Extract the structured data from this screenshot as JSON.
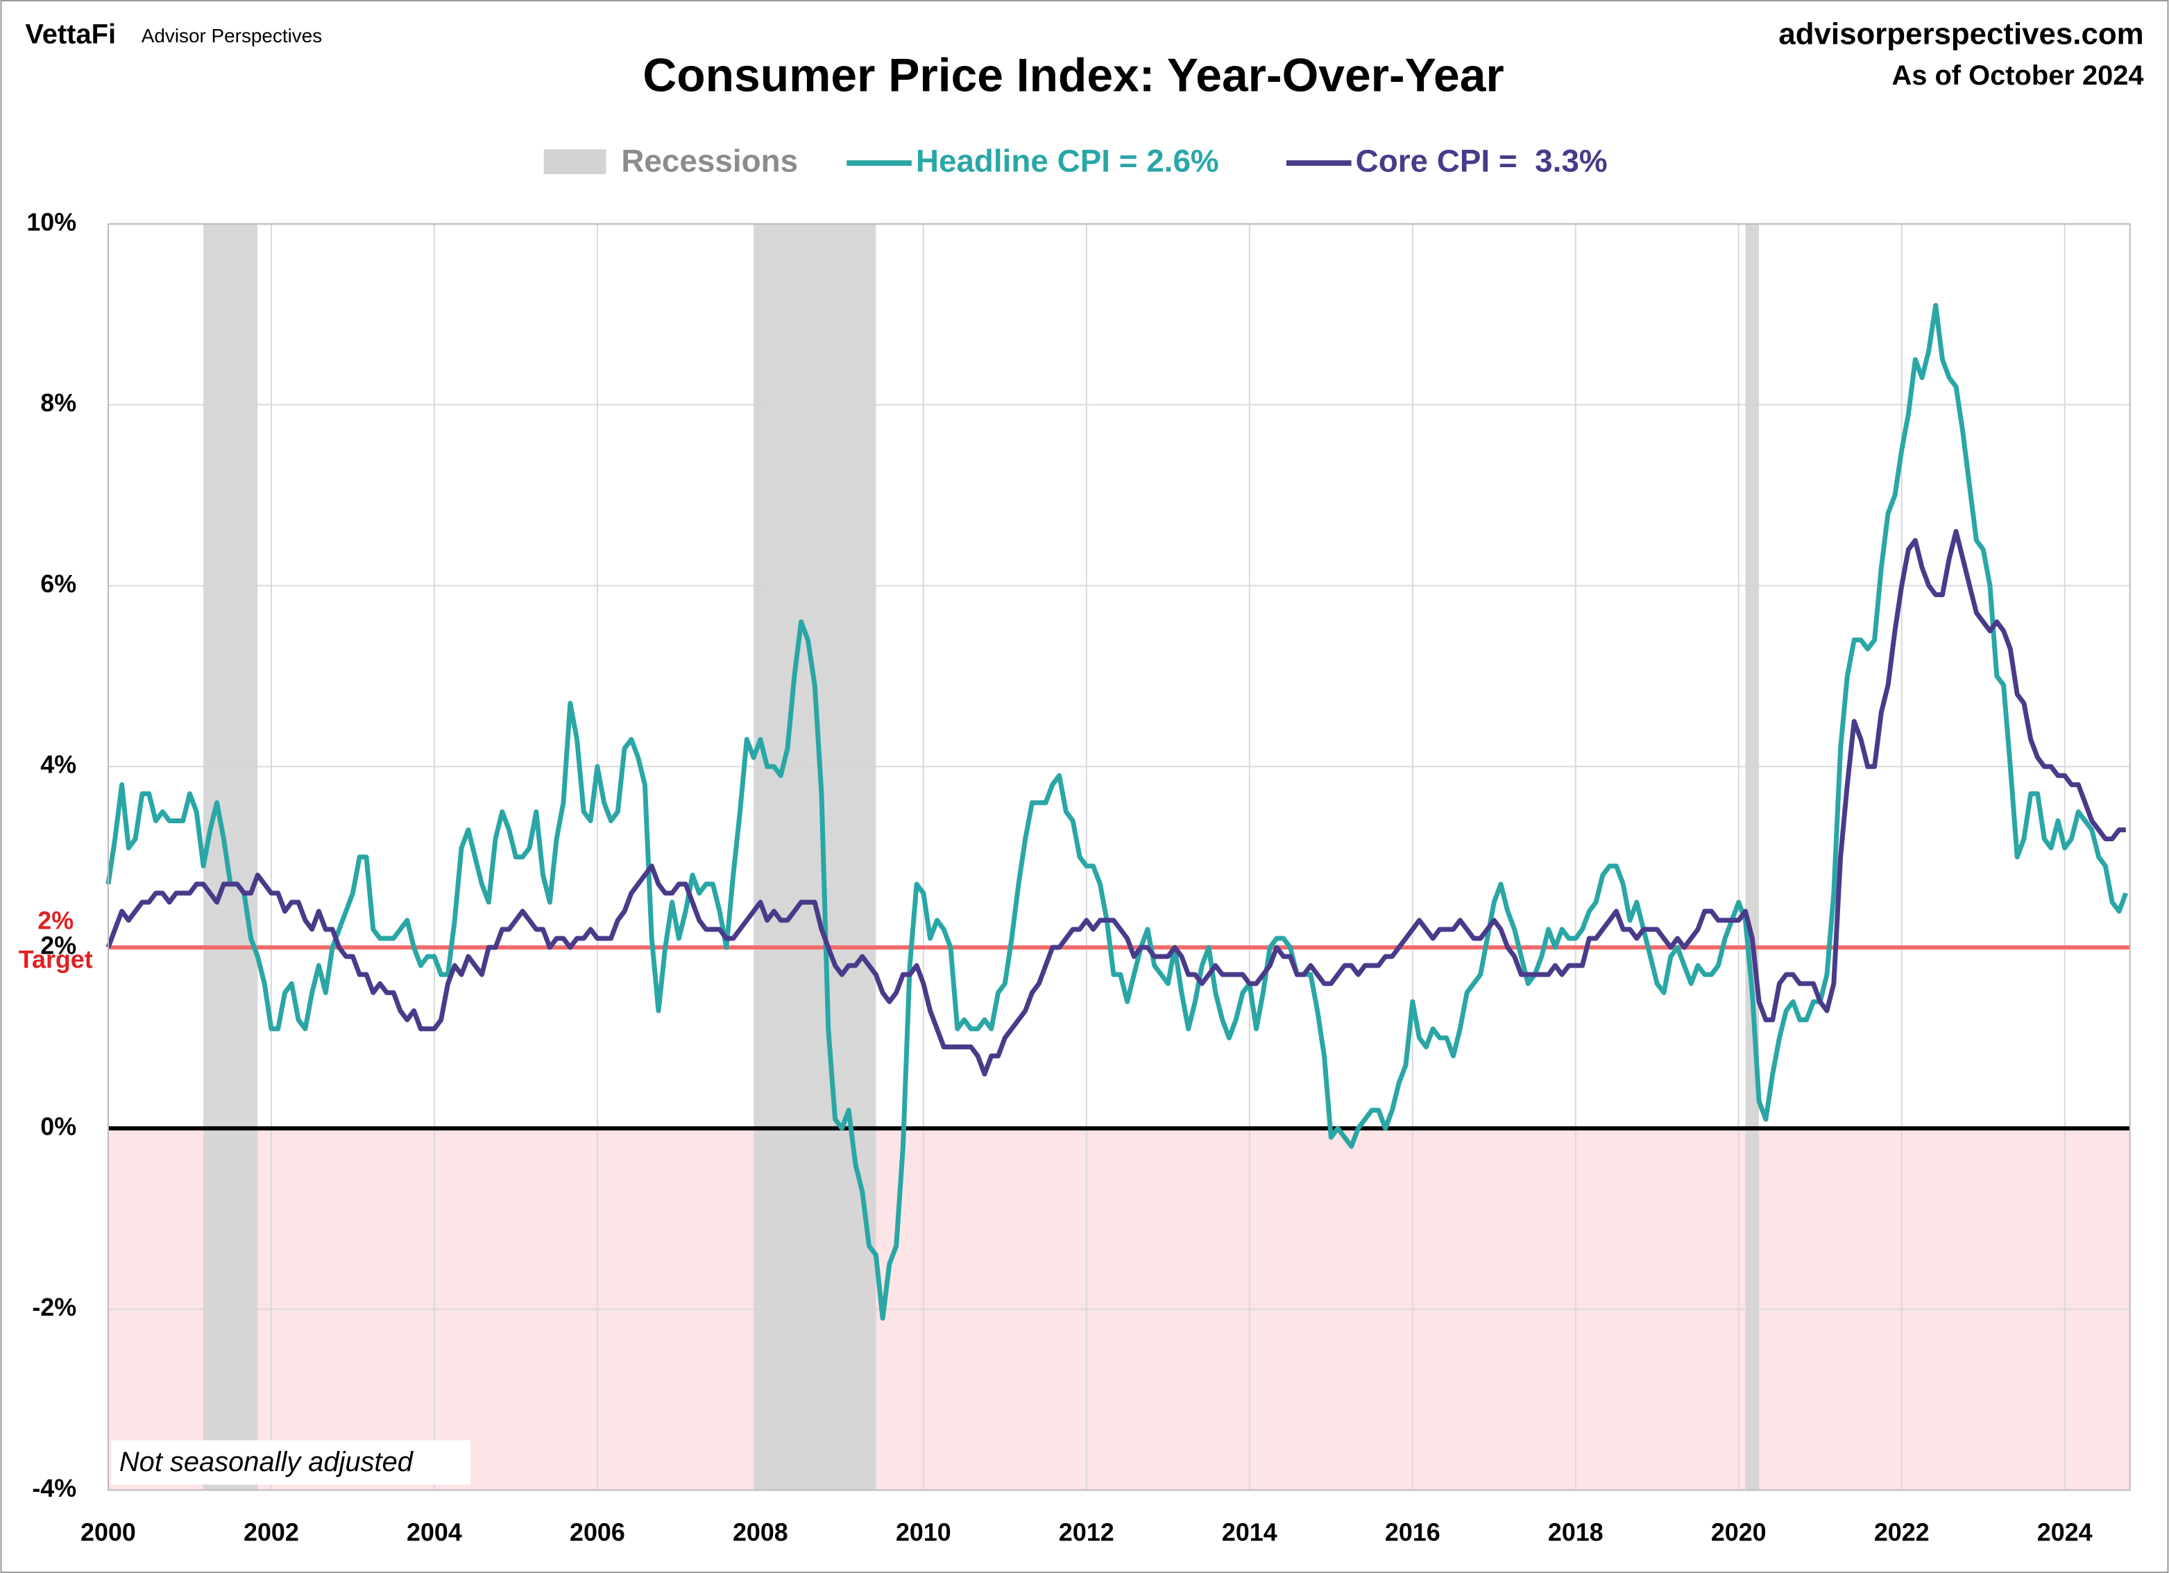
{
  "chart_data": {
    "type": "line",
    "title": "Consumer Price Index: Year-Over-Year",
    "brand": "VettaFi",
    "brand_sub": "Advisor Perspectives",
    "source": "advisorperspectives.com",
    "as_of": "As of October 2024",
    "note": "Not seasonally adjusted",
    "recession_label": "Recessions",
    "recession_color": "#d3d3d3",
    "recessions": [
      {
        "start": 2001.167,
        "end": 2001.833
      },
      {
        "start": 2007.917,
        "end": 2009.417
      },
      {
        "start": 2020.083,
        "end": 2020.25
      }
    ],
    "target": {
      "value": 2,
      "label": "2%",
      "name": "Target",
      "color": "#f26b6b"
    },
    "negative_fill": "#fde4e6",
    "grid": true,
    "xlim": [
      2000,
      2024.8
    ],
    "xticks": [
      2000,
      2002,
      2004,
      2006,
      2008,
      2010,
      2012,
      2014,
      2016,
      2018,
      2020,
      2022,
      2024
    ],
    "ylim": [
      -4,
      10
    ],
    "yticks": [
      {
        "value": -4,
        "label": "-4%"
      },
      {
        "value": -2,
        "label": "-2%"
      },
      {
        "value": 0,
        "label": "0%"
      },
      {
        "value": 2,
        "label": "2%"
      },
      {
        "value": 4,
        "label": "4%"
      },
      {
        "value": 6,
        "label": "6%"
      },
      {
        "value": 8,
        "label": "8%"
      },
      {
        "value": 10,
        "label": "10%"
      }
    ],
    "x": [
      2000,
      2000.083,
      2000.167,
      2000.25,
      2000.333,
      2000.417,
      2000.5,
      2000.583,
      2000.667,
      2000.75,
      2000.833,
      2000.917,
      2001,
      2001.083,
      2001.167,
      2001.25,
      2001.333,
      2001.417,
      2001.5,
      2001.583,
      2001.667,
      2001.75,
      2001.833,
      2001.917,
      2002,
      2002.083,
      2002.167,
      2002.25,
      2002.333,
      2002.417,
      2002.5,
      2002.583,
      2002.667,
      2002.75,
      2002.833,
      2002.917,
      2003,
      2003.083,
      2003.167,
      2003.25,
      2003.333,
      2003.417,
      2003.5,
      2003.583,
      2003.667,
      2003.75,
      2003.833,
      2003.917,
      2004,
      2004.083,
      2004.167,
      2004.25,
      2004.333,
      2004.417,
      2004.5,
      2004.583,
      2004.667,
      2004.75,
      2004.833,
      2004.917,
      2005,
      2005.083,
      2005.167,
      2005.25,
      2005.333,
      2005.417,
      2005.5,
      2005.583,
      2005.667,
      2005.75,
      2005.833,
      2005.917,
      2006,
      2006.083,
      2006.167,
      2006.25,
      2006.333,
      2006.417,
      2006.5,
      2006.583,
      2006.667,
      2006.75,
      2006.833,
      2006.917,
      2007,
      2007.083,
      2007.167,
      2007.25,
      2007.333,
      2007.417,
      2007.5,
      2007.583,
      2007.667,
      2007.75,
      2007.833,
      2007.917,
      2008,
      2008.083,
      2008.167,
      2008.25,
      2008.333,
      2008.417,
      2008.5,
      2008.583,
      2008.667,
      2008.75,
      2008.833,
      2008.917,
      2009,
      2009.083,
      2009.167,
      2009.25,
      2009.333,
      2009.417,
      2009.5,
      2009.583,
      2009.667,
      2009.75,
      2009.833,
      2009.917,
      2010,
      2010.083,
      2010.167,
      2010.25,
      2010.333,
      2010.417,
      2010.5,
      2010.583,
      2010.667,
      2010.75,
      2010.833,
      2010.917,
      2011,
      2011.083,
      2011.167,
      2011.25,
      2011.333,
      2011.417,
      2011.5,
      2011.583,
      2011.667,
      2011.75,
      2011.833,
      2011.917,
      2012,
      2012.083,
      2012.167,
      2012.25,
      2012.333,
      2012.417,
      2012.5,
      2012.583,
      2012.667,
      2012.75,
      2012.833,
      2012.917,
      2013,
      2013.083,
      2013.167,
      2013.25,
      2013.333,
      2013.417,
      2013.5,
      2013.583,
      2013.667,
      2013.75,
      2013.833,
      2013.917,
      2014,
      2014.083,
      2014.167,
      2014.25,
      2014.333,
      2014.417,
      2014.5,
      2014.583,
      2014.667,
      2014.75,
      2014.833,
      2014.917,
      2015,
      2015.083,
      2015.167,
      2015.25,
      2015.333,
      2015.417,
      2015.5,
      2015.583,
      2015.667,
      2015.75,
      2015.833,
      2015.917,
      2016,
      2016.083,
      2016.167,
      2016.25,
      2016.333,
      2016.417,
      2016.5,
      2016.583,
      2016.667,
      2016.75,
      2016.833,
      2016.917,
      2017,
      2017.083,
      2017.167,
      2017.25,
      2017.333,
      2017.417,
      2017.5,
      2017.583,
      2017.667,
      2017.75,
      2017.833,
      2017.917,
      2018,
      2018.083,
      2018.167,
      2018.25,
      2018.333,
      2018.417,
      2018.5,
      2018.583,
      2018.667,
      2018.75,
      2018.833,
      2018.917,
      2019,
      2019.083,
      2019.167,
      2019.25,
      2019.333,
      2019.417,
      2019.5,
      2019.583,
      2019.667,
      2019.75,
      2019.833,
      2019.917,
      2020,
      2020.083,
      2020.167,
      2020.25,
      2020.333,
      2020.417,
      2020.5,
      2020.583,
      2020.667,
      2020.75,
      2020.833,
      2020.917,
      2021,
      2021.083,
      2021.167,
      2021.25,
      2021.333,
      2021.417,
      2021.5,
      2021.583,
      2021.667,
      2021.75,
      2021.833,
      2021.917,
      2022,
      2022.083,
      2022.167,
      2022.25,
      2022.333,
      2022.417,
      2022.5,
      2022.583,
      2022.667,
      2022.75,
      2022.833,
      2022.917,
      2023,
      2023.083,
      2023.167,
      2023.25,
      2023.333,
      2023.417,
      2023.5,
      2023.583,
      2023.667,
      2023.75,
      2023.833,
      2023.917,
      2024,
      2024.083,
      2024.167,
      2024.25,
      2024.333,
      2024.417,
      2024.5,
      2024.583,
      2024.667,
      2024.75
    ],
    "series": [
      {
        "name": "Headline CPI = 2.6%",
        "color": "#2aa6a6",
        "values": [
          2.7,
          3.2,
          3.8,
          3.1,
          3.2,
          3.7,
          3.7,
          3.4,
          3.5,
          3.4,
          3.4,
          3.4,
          3.7,
          3.5,
          2.9,
          3.3,
          3.6,
          3.2,
          2.7,
          2.7,
          2.6,
          2.1,
          1.9,
          1.6,
          1.1,
          1.1,
          1.5,
          1.6,
          1.2,
          1.1,
          1.5,
          1.8,
          1.5,
          2.0,
          2.2,
          2.4,
          2.6,
          3.0,
          3.0,
          2.2,
          2.1,
          2.1,
          2.1,
          2.2,
          2.3,
          2.0,
          1.8,
          1.9,
          1.9,
          1.7,
          1.7,
          2.3,
          3.1,
          3.3,
          3.0,
          2.7,
          2.5,
          3.2,
          3.5,
          3.3,
          3.0,
          3.0,
          3.1,
          3.5,
          2.8,
          2.5,
          3.2,
          3.6,
          4.7,
          4.3,
          3.5,
          3.4,
          4.0,
          3.6,
          3.4,
          3.5,
          4.2,
          4.3,
          4.1,
          3.8,
          2.1,
          1.3,
          2.0,
          2.5,
          2.1,
          2.4,
          2.8,
          2.6,
          2.7,
          2.7,
          2.4,
          2.0,
          2.8,
          3.5,
          4.3,
          4.1,
          4.3,
          4.0,
          4.0,
          3.9,
          4.2,
          5.0,
          5.6,
          5.4,
          4.9,
          3.7,
          1.1,
          0.1,
          0.0,
          0.2,
          -0.4,
          -0.7,
          -1.3,
          -1.4,
          -2.1,
          -1.5,
          -1.3,
          -0.2,
          1.8,
          2.7,
          2.6,
          2.1,
          2.3,
          2.2,
          2.0,
          1.1,
          1.2,
          1.1,
          1.1,
          1.2,
          1.1,
          1.5,
          1.6,
          2.1,
          2.7,
          3.2,
          3.6,
          3.6,
          3.6,
          3.8,
          3.9,
          3.5,
          3.4,
          3.0,
          2.9,
          2.9,
          2.7,
          2.3,
          1.7,
          1.7,
          1.4,
          1.7,
          2.0,
          2.2,
          1.8,
          1.7,
          1.6,
          2.0,
          1.5,
          1.1,
          1.4,
          1.8,
          2.0,
          1.5,
          1.2,
          1.0,
          1.2,
          1.5,
          1.6,
          1.1,
          1.5,
          2.0,
          2.1,
          2.1,
          2.0,
          1.7,
          1.7,
          1.7,
          1.3,
          0.8,
          -0.1,
          0.0,
          -0.1,
          -0.2,
          0.0,
          0.1,
          0.2,
          0.2,
          0.0,
          0.2,
          0.5,
          0.7,
          1.4,
          1.0,
          0.9,
          1.1,
          1.0,
          1.0,
          0.8,
          1.1,
          1.5,
          1.6,
          1.7,
          2.1,
          2.5,
          2.7,
          2.4,
          2.2,
          1.9,
          1.6,
          1.7,
          1.9,
          2.2,
          2.0,
          2.2,
          2.1,
          2.1,
          2.2,
          2.4,
          2.5,
          2.8,
          2.9,
          2.9,
          2.7,
          2.3,
          2.5,
          2.2,
          1.9,
          1.6,
          1.5,
          1.9,
          2.0,
          1.8,
          1.6,
          1.8,
          1.7,
          1.7,
          1.8,
          2.1,
          2.3,
          2.5,
          2.3,
          1.5,
          0.3,
          0.1,
          0.6,
          1.0,
          1.3,
          1.4,
          1.2,
          1.2,
          1.4,
          1.4,
          1.7,
          2.6,
          4.2,
          5.0,
          5.4,
          5.4,
          5.3,
          5.4,
          6.2,
          6.8,
          7.0,
          7.5,
          7.9,
          8.5,
          8.3,
          8.6,
          9.1,
          8.5,
          8.3,
          8.2,
          7.7,
          7.1,
          6.5,
          6.4,
          6.0,
          5.0,
          4.9,
          4.0,
          3.0,
          3.2,
          3.7,
          3.7,
          3.2,
          3.1,
          3.4,
          3.1,
          3.2,
          3.5,
          3.4,
          3.3,
          3.0,
          2.9,
          2.5,
          2.4,
          2.6
        ]
      },
      {
        "name": "Core CPI =  3.3%",
        "color": "#4a3a8a",
        "values": [
          2.0,
          2.2,
          2.4,
          2.3,
          2.4,
          2.5,
          2.5,
          2.6,
          2.6,
          2.5,
          2.6,
          2.6,
          2.6,
          2.7,
          2.7,
          2.6,
          2.5,
          2.7,
          2.7,
          2.7,
          2.6,
          2.6,
          2.8,
          2.7,
          2.6,
          2.6,
          2.4,
          2.5,
          2.5,
          2.3,
          2.2,
          2.4,
          2.2,
          2.2,
          2.0,
          1.9,
          1.9,
          1.7,
          1.7,
          1.5,
          1.6,
          1.5,
          1.5,
          1.3,
          1.2,
          1.3,
          1.1,
          1.1,
          1.1,
          1.2,
          1.6,
          1.8,
          1.7,
          1.9,
          1.8,
          1.7,
          2.0,
          2.0,
          2.2,
          2.2,
          2.3,
          2.4,
          2.3,
          2.2,
          2.2,
          2.0,
          2.1,
          2.1,
          2.0,
          2.1,
          2.1,
          2.2,
          2.1,
          2.1,
          2.1,
          2.3,
          2.4,
          2.6,
          2.7,
          2.8,
          2.9,
          2.7,
          2.6,
          2.6,
          2.7,
          2.7,
          2.5,
          2.3,
          2.2,
          2.2,
          2.2,
          2.1,
          2.1,
          2.2,
          2.3,
          2.4,
          2.5,
          2.3,
          2.4,
          2.3,
          2.3,
          2.4,
          2.5,
          2.5,
          2.5,
          2.2,
          2.0,
          1.8,
          1.7,
          1.8,
          1.8,
          1.9,
          1.8,
          1.7,
          1.5,
          1.4,
          1.5,
          1.7,
          1.7,
          1.8,
          1.6,
          1.3,
          1.1,
          0.9,
          0.9,
          0.9,
          0.9,
          0.9,
          0.8,
          0.6,
          0.8,
          0.8,
          1.0,
          1.1,
          1.2,
          1.3,
          1.5,
          1.6,
          1.8,
          2.0,
          2.0,
          2.1,
          2.2,
          2.2,
          2.3,
          2.2,
          2.3,
          2.3,
          2.3,
          2.2,
          2.1,
          1.9,
          2.0,
          2.0,
          1.9,
          1.9,
          1.9,
          2.0,
          1.9,
          1.7,
          1.7,
          1.6,
          1.7,
          1.8,
          1.7,
          1.7,
          1.7,
          1.7,
          1.6,
          1.6,
          1.7,
          1.8,
          2.0,
          1.9,
          1.9,
          1.7,
          1.7,
          1.8,
          1.7,
          1.6,
          1.6,
          1.7,
          1.8,
          1.8,
          1.7,
          1.8,
          1.8,
          1.8,
          1.9,
          1.9,
          2.0,
          2.1,
          2.2,
          2.3,
          2.2,
          2.1,
          2.2,
          2.2,
          2.2,
          2.3,
          2.2,
          2.1,
          2.1,
          2.2,
          2.3,
          2.2,
          2.0,
          1.9,
          1.7,
          1.7,
          1.7,
          1.7,
          1.7,
          1.8,
          1.7,
          1.8,
          1.8,
          1.8,
          2.1,
          2.1,
          2.2,
          2.3,
          2.4,
          2.2,
          2.2,
          2.1,
          2.2,
          2.2,
          2.2,
          2.1,
          2.0,
          2.1,
          2.0,
          2.1,
          2.2,
          2.4,
          2.4,
          2.3,
          2.3,
          2.3,
          2.3,
          2.4,
          2.1,
          1.4,
          1.2,
          1.2,
          1.6,
          1.7,
          1.7,
          1.6,
          1.6,
          1.6,
          1.4,
          1.3,
          1.6,
          3.0,
          3.8,
          4.5,
          4.3,
          4.0,
          4.0,
          4.6,
          4.9,
          5.5,
          6.0,
          6.4,
          6.5,
          6.2,
          6.0,
          5.9,
          5.9,
          6.3,
          6.6,
          6.3,
          6.0,
          5.7,
          5.6,
          5.5,
          5.6,
          5.5,
          5.3,
          4.8,
          4.7,
          4.3,
          4.1,
          4.0,
          4.0,
          3.9,
          3.9,
          3.8,
          3.8,
          3.6,
          3.4,
          3.3,
          3.2,
          3.2,
          3.3,
          3.3
        ]
      }
    ]
  }
}
